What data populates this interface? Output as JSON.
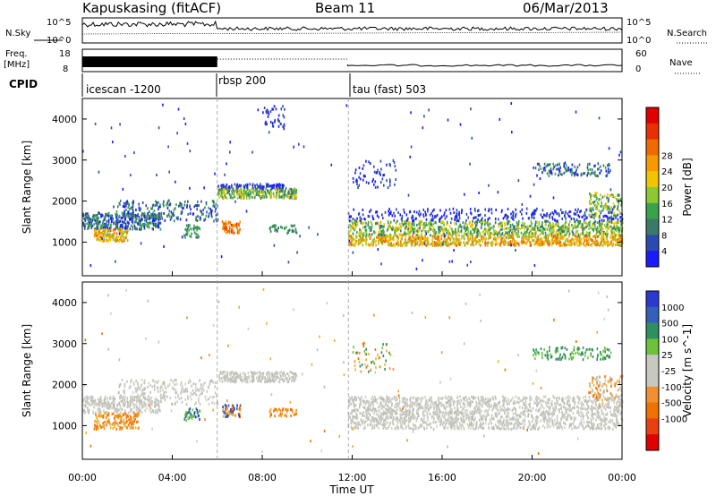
{
  "header": {
    "radar": "Kapuskasing (fitACF)",
    "beam": "Beam 11",
    "date": "06/Mar/2013"
  },
  "chart_data": [
    {
      "type": "line",
      "panel": "noise",
      "left_label": "N.Sky",
      "right_label": "N.Search",
      "left_ticks": [
        "10^5",
        "10^0"
      ],
      "right_ticks": [
        "10^5",
        "10^0"
      ],
      "xlim": [
        "00:00",
        "24:00"
      ]
    },
    {
      "type": "line",
      "panel": "frequency",
      "left_label_top": "Freq.",
      "left_label_bottom": "[MHz]",
      "right_label": "Nave",
      "left_ticks": [
        18,
        8
      ],
      "right_ticks": [
        60,
        0
      ],
      "xlim": [
        "00:00",
        "24:00"
      ]
    },
    {
      "type": "table",
      "panel": "cpid",
      "label": "CPID",
      "segments": [
        {
          "name": "icescan -1200",
          "start_hour": 0
        },
        {
          "name": "rbsp 200",
          "start_hour": 6
        },
        {
          "name": "tau (fast) 503",
          "start_hour": 11.83
        }
      ]
    },
    {
      "type": "heatmap",
      "panel": "power",
      "ylabel": "Slant Range [km]",
      "ylim": [
        180,
        4500
      ],
      "yticks": [
        1000,
        2000,
        3000,
        4000
      ],
      "colorbar": {
        "label": "Power [dB]",
        "ticks": [
          "4",
          "8",
          "12",
          "16",
          "20",
          "24",
          "28"
        ],
        "colors": [
          "#1a1aff",
          "#2a4ab0",
          "#3b7a6a",
          "#3aa24a",
          "#8cc832",
          "#f0c400",
          "#f59a00",
          "#f06a00",
          "#e83000",
          "#e00000"
        ]
      }
    },
    {
      "type": "heatmap",
      "panel": "velocity",
      "ylabel": "Slant Range [km]",
      "ylim": [
        180,
        4500
      ],
      "yticks": [
        1000,
        2000,
        3000,
        4000
      ],
      "xlabel": "Time UT",
      "xticks": [
        "00:00",
        "04:00",
        "08:00",
        "12:00",
        "16:00",
        "20:00",
        "00:00"
      ],
      "colorbar": {
        "label": "Velocity  [m s^-1]",
        "ticks": [
          "1000",
          "500",
          "100",
          "25",
          "-25",
          "-100",
          "-500",
          "-1000"
        ],
        "colors": [
          "#2a3ad0",
          "#3460b8",
          "#2f8f60",
          "#6cc23a",
          "#c8c8c0",
          "#c8c8c0",
          "#f09030",
          "#f07000",
          "#e84010",
          "#e00000"
        ]
      }
    }
  ]
}
